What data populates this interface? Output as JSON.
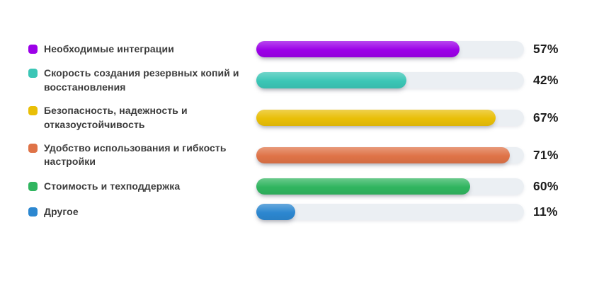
{
  "chart_data": {
    "type": "bar",
    "orientation": "horizontal",
    "title": "",
    "xlabel": "",
    "ylabel": "",
    "grid": false,
    "legend_position": "left-of-bars",
    "categories": [
      "Необходимые интеграции",
      "Скорость создания резервных копий и восстановления",
      "Безопасность, надежность и отказоустойчивость",
      "Удобство использования и гибкость настройки",
      "Стоимость и техподдержка",
      "Другое"
    ],
    "values": [
      57,
      42,
      67,
      71,
      60,
      11
    ],
    "unit": "%",
    "value_labels": [
      "57%",
      "42%",
      "67%",
      "71%",
      "60%",
      "11%"
    ],
    "colors": [
      "#9c00e8",
      "#3bc6b6",
      "#e9bf07",
      "#df7347",
      "#30b55f",
      "#2c87d0"
    ],
    "track_color": "#ebeff3",
    "scale_max": 75,
    "text_color": "#3c3c3c",
    "value_text_color": "#1e1e1e",
    "background_color": "#ffffff"
  }
}
